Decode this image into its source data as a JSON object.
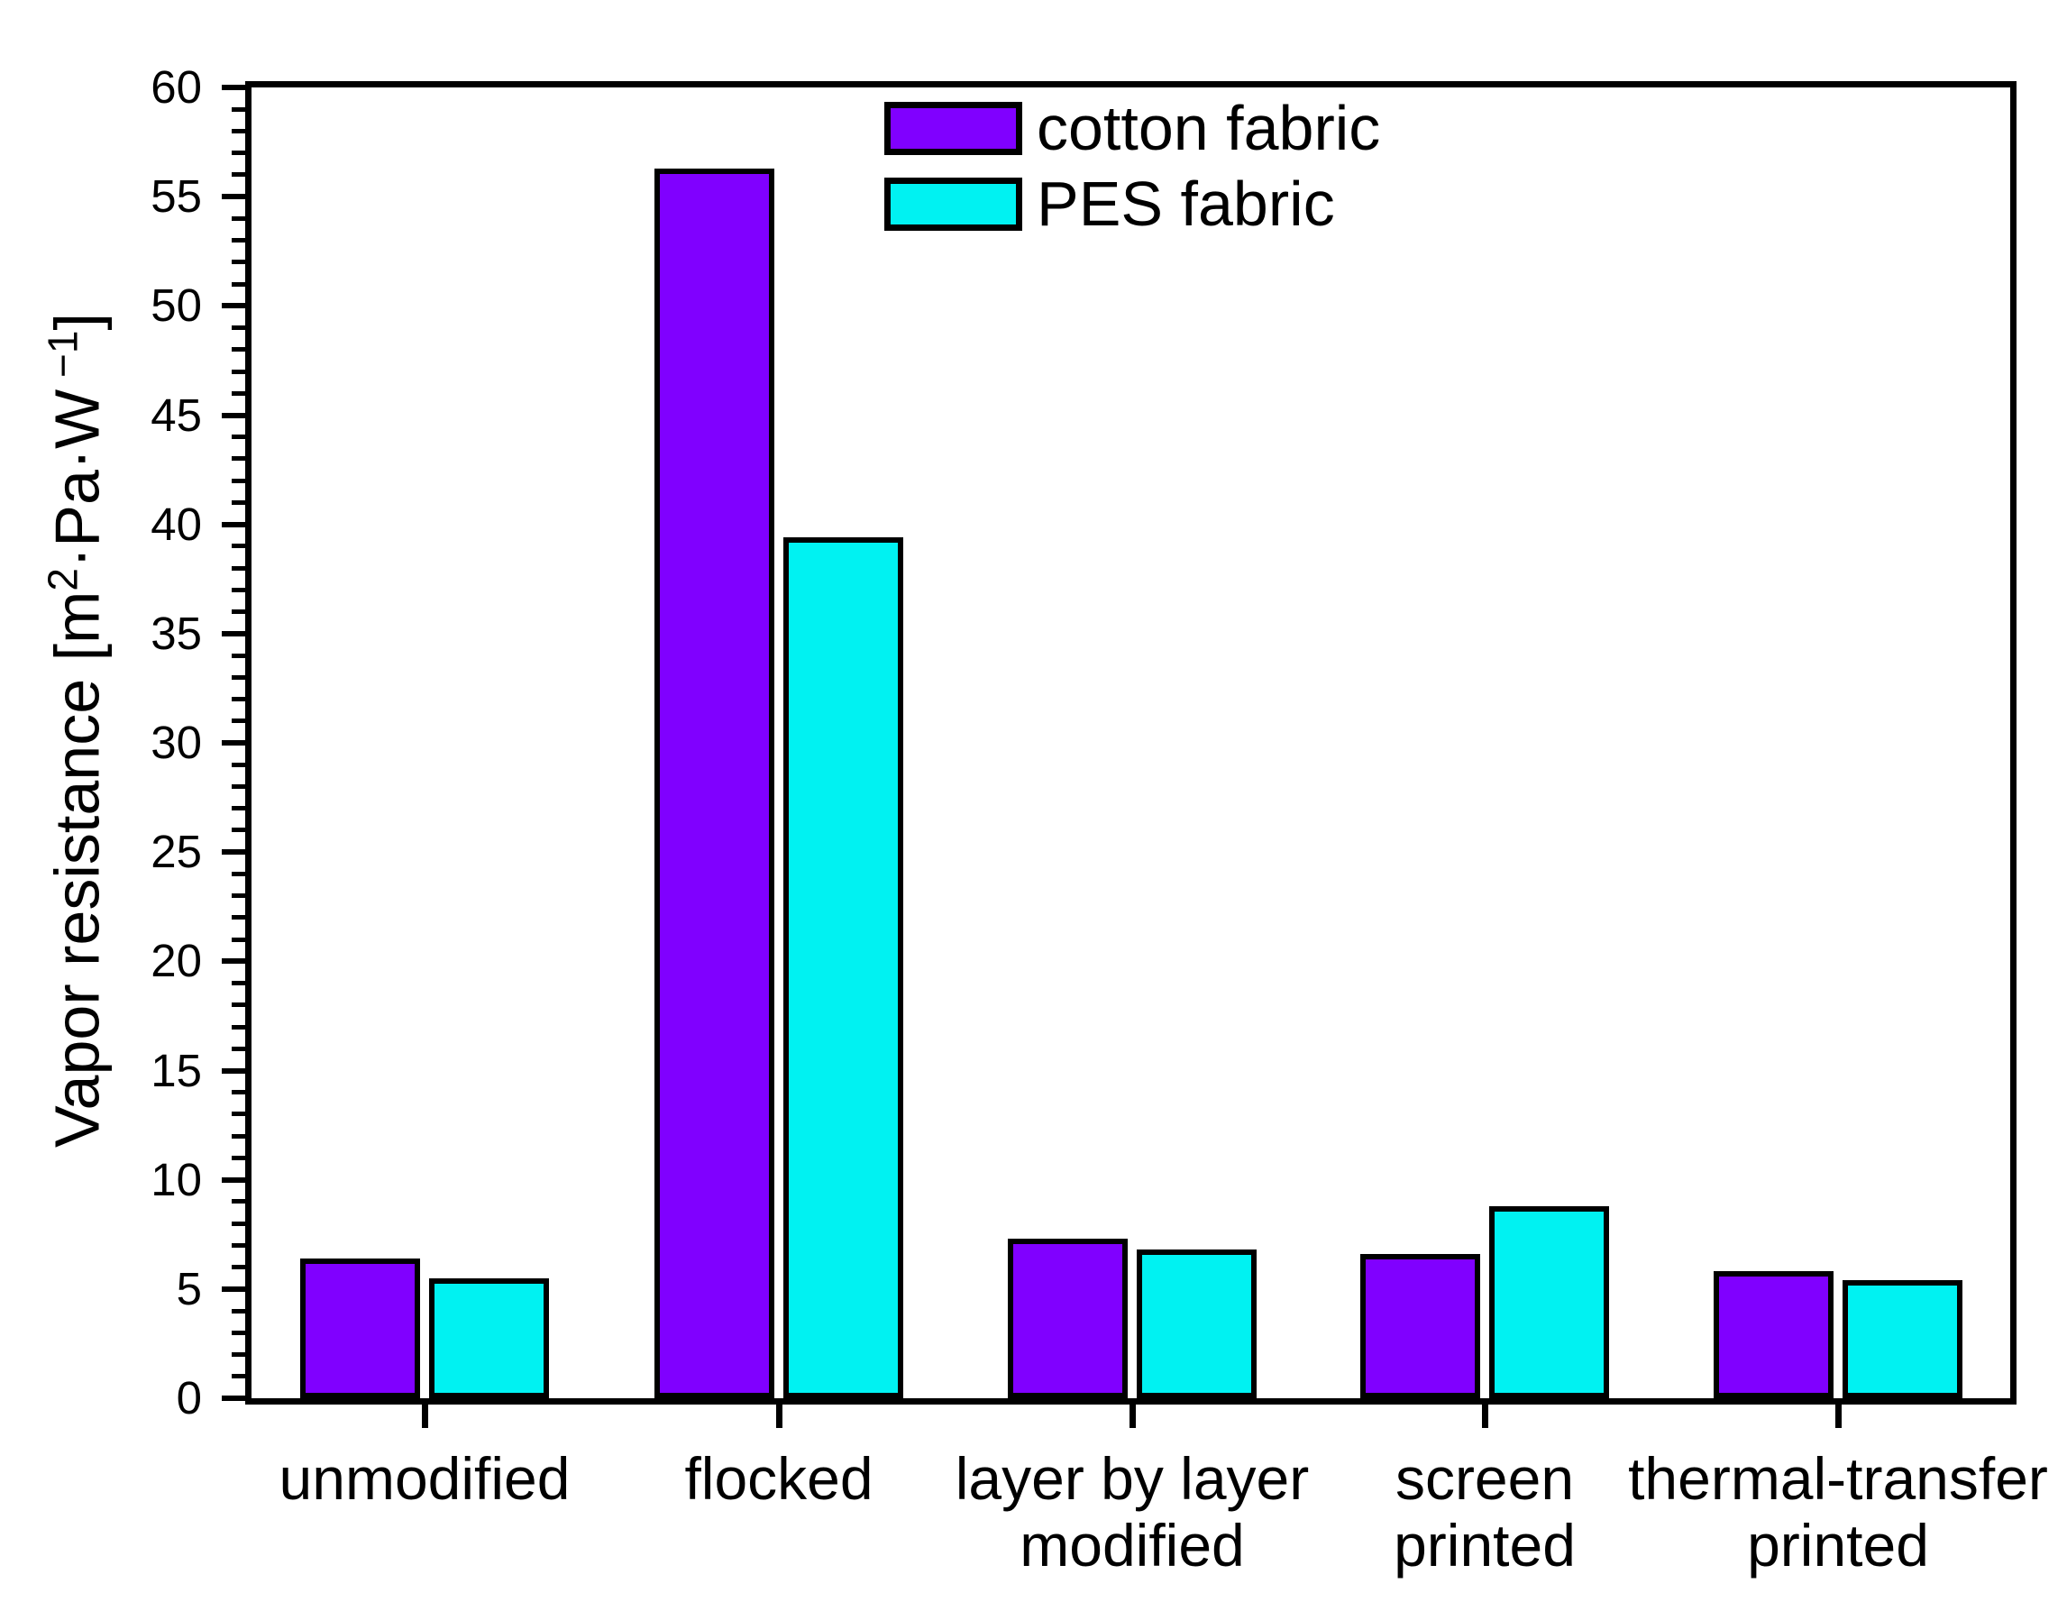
{
  "figure": {
    "background": "#FFFFFF",
    "axis_color": "#000000"
  },
  "legend": {
    "entries": [
      {
        "label": "cotton fabric",
        "color": "#8000FF"
      },
      {
        "label": "PES fabric",
        "color": "#00F2F2"
      }
    ]
  },
  "chart_data": {
    "type": "bar",
    "title": "",
    "xlabel": "",
    "ylabel": "Vapor resistance [m²·Pa·W⁻¹]",
    "ylabel_segments": [
      {
        "t": "Vapor resistance  [m"
      },
      {
        "t": "2",
        "sup": true
      },
      {
        "t": "·Pa·W"
      },
      {
        "t": " −1",
        "sup": true
      },
      {
        "t": "]"
      }
    ],
    "categories": [
      "unmodified",
      "flocked",
      "layer by layer\nmodified",
      "screen\nprinted",
      "thermal-transfer\nprinted"
    ],
    "series": [
      {
        "name": "cotton fabric",
        "color": "#8000FF",
        "values": [
          6.4,
          56.3,
          7.3,
          6.6,
          5.8
        ]
      },
      {
        "name": "PES fabric",
        "color": "#00F2F2",
        "values": [
          5.5,
          39.4,
          6.8,
          8.8,
          5.4
        ]
      }
    ],
    "ylim": [
      0,
      60
    ],
    "y_major_step": 5,
    "y_minor_step": 1,
    "y_tick_labels": [
      "0",
      "5",
      "10",
      "15",
      "20",
      "25",
      "30",
      "35",
      "40",
      "45",
      "50",
      "55",
      "60"
    ],
    "grid": false,
    "legend_position": "top-center",
    "bar_border_color": "#000000"
  }
}
